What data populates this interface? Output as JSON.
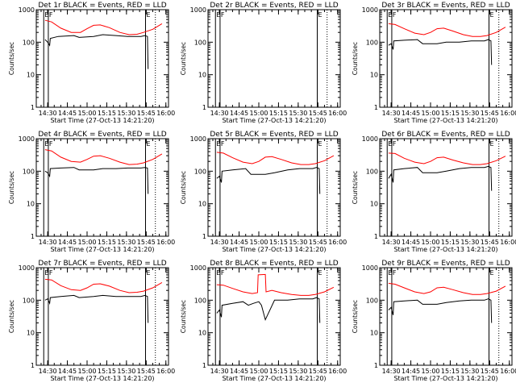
{
  "chart_data": [
    {
      "type": "line",
      "title": "Det 1r BLACK = Events, RED = LLD",
      "detector": "1r",
      "attenuator_labels": [
        "E",
        "F",
        "E"
      ],
      "series": [
        {
          "name": "Events",
          "color": "#000000",
          "x": [
            "14:28",
            "14:30",
            "14:31.5",
            "14:32",
            "14:38",
            "14:50",
            "14:54",
            "15:05",
            "15:12",
            "15:22",
            "15:31",
            "15:39",
            "15:41",
            "15:44",
            "15:46",
            "15:46.5"
          ],
          "y": [
            120,
            100,
            80,
            130,
            150,
            160,
            140,
            150,
            170,
            160,
            150,
            150,
            150,
            160,
            150,
            15
          ]
        },
        {
          "name": "LLD",
          "color": "#ff0000",
          "x": [
            "14:28",
            "14:33",
            "14:40",
            "14:48",
            "14:55",
            "15:00",
            "15:05",
            "15:10",
            "15:17",
            "15:25",
            "15:32",
            "15:38",
            "15:43",
            "15:50",
            "15:57"
          ],
          "y": [
            470,
            420,
            270,
            200,
            200,
            260,
            330,
            340,
            280,
            200,
            170,
            175,
            200,
            250,
            370
          ]
        }
      ]
    },
    {
      "type": "line",
      "title": "Det 2r BLACK = Events, RED = LLD",
      "detector": "2r",
      "attenuator_labels": [
        "E",
        "F",
        "E"
      ],
      "series": []
    },
    {
      "type": "line",
      "title": "Det 3r BLACK = Events, RED = LLD",
      "detector": "3r",
      "attenuator_labels": [
        "E",
        "F",
        "E"
      ],
      "series": [
        {
          "name": "Events",
          "color": "#000000",
          "x": [
            "14:28",
            "14:30",
            "14:31.5",
            "14:32",
            "14:40",
            "14:50",
            "14:54",
            "15:05",
            "15:12",
            "15:22",
            "15:31",
            "15:39",
            "15:41",
            "15:44",
            "15:46",
            "15:46.5"
          ],
          "y": [
            80,
            90,
            60,
            110,
            115,
            120,
            90,
            90,
            100,
            100,
            110,
            110,
            110,
            120,
            110,
            20
          ]
        },
        {
          "name": "LLD",
          "color": "#ff0000",
          "x": [
            "14:28",
            "14:33",
            "14:40",
            "14:48",
            "14:55",
            "15:00",
            "15:05",
            "15:10",
            "15:17",
            "15:25",
            "15:32",
            "15:38",
            "15:43",
            "15:50",
            "15:57"
          ],
          "y": [
            370,
            350,
            260,
            190,
            170,
            200,
            260,
            270,
            220,
            170,
            150,
            150,
            160,
            200,
            290
          ]
        }
      ]
    },
    {
      "type": "line",
      "title": "Det 4r BLACK = Events, RED = LLD",
      "detector": "4r",
      "attenuator_labels": [
        "E",
        "F",
        "E"
      ],
      "series": [
        {
          "name": "Events",
          "color": "#000000",
          "x": [
            "14:28",
            "14:30",
            "14:31.5",
            "14:32",
            "14:40",
            "14:50",
            "14:54",
            "15:05",
            "15:12",
            "15:22",
            "15:31",
            "15:39",
            "15:41",
            "15:44",
            "15:46",
            "15:46.5"
          ],
          "y": [
            100,
            90,
            70,
            120,
            125,
            130,
            110,
            110,
            120,
            120,
            125,
            125,
            125,
            130,
            125,
            20
          ]
        },
        {
          "name": "LLD",
          "color": "#ff0000",
          "x": [
            "14:28",
            "14:33",
            "14:40",
            "14:48",
            "14:55",
            "15:00",
            "15:05",
            "15:10",
            "15:17",
            "15:25",
            "15:32",
            "15:38",
            "15:43",
            "15:50",
            "15:57"
          ],
          "y": [
            460,
            420,
            270,
            200,
            190,
            230,
            290,
            300,
            250,
            190,
            160,
            165,
            180,
            230,
            340
          ]
        }
      ]
    },
    {
      "type": "line",
      "title": "Det 5r BLACK = Events, RED = LLD",
      "detector": "5r",
      "attenuator_labels": [
        "E",
        "F",
        "E"
      ],
      "series": [
        {
          "name": "Events",
          "color": "#000000",
          "x": [
            "14:28",
            "14:30",
            "14:31.5",
            "14:32",
            "14:40",
            "14:50",
            "14:54",
            "15:05",
            "15:12",
            "15:22",
            "15:31",
            "15:39",
            "15:41",
            "15:44",
            "15:46",
            "15:46.5"
          ],
          "y": [
            60,
            70,
            45,
            100,
            110,
            120,
            80,
            80,
            90,
            110,
            120,
            120,
            120,
            130,
            120,
            20
          ]
        },
        {
          "name": "LLD",
          "color": "#ff0000",
          "x": [
            "14:28",
            "14:33",
            "14:40",
            "14:48",
            "14:55",
            "15:00",
            "15:05",
            "15:10",
            "15:17",
            "15:25",
            "15:32",
            "15:38",
            "15:43",
            "15:50",
            "15:57"
          ],
          "y": [
            380,
            360,
            260,
            190,
            170,
            200,
            270,
            280,
            230,
            180,
            160,
            160,
            170,
            210,
            300
          ]
        }
      ]
    },
    {
      "type": "line",
      "title": "Det 6r BLACK = Events, RED = LLD",
      "detector": "6r",
      "attenuator_labels": [
        "E",
        "F",
        "E"
      ],
      "series": [
        {
          "name": "Events",
          "color": "#000000",
          "x": [
            "14:28",
            "14:30",
            "14:31.5",
            "14:32",
            "14:40",
            "14:50",
            "14:54",
            "15:05",
            "15:12",
            "15:22",
            "15:31",
            "15:39",
            "15:41",
            "15:44",
            "15:46",
            "15:46.5"
          ],
          "y": [
            60,
            80,
            45,
            110,
            120,
            130,
            90,
            90,
            100,
            120,
            130,
            130,
            130,
            140,
            130,
            25
          ]
        },
        {
          "name": "LLD",
          "color": "#ff0000",
          "x": [
            "14:28",
            "14:33",
            "14:40",
            "14:48",
            "14:55",
            "15:00",
            "15:05",
            "15:10",
            "15:17",
            "15:25",
            "15:32",
            "15:38",
            "15:43",
            "15:50",
            "15:57"
          ],
          "y": [
            360,
            350,
            250,
            190,
            170,
            200,
            260,
            270,
            220,
            180,
            160,
            160,
            170,
            210,
            290
          ]
        }
      ]
    },
    {
      "type": "line",
      "title": "Det 7r BLACK = Events, RED = LLD",
      "detector": "7r",
      "attenuator_labels": [
        "E",
        "F",
        "E"
      ],
      "series": [
        {
          "name": "Events",
          "color": "#000000",
          "x": [
            "14:28",
            "14:30",
            "14:31.5",
            "14:32",
            "14:40",
            "14:50",
            "14:54",
            "15:05",
            "15:12",
            "15:22",
            "15:31",
            "15:39",
            "15:41",
            "15:44",
            "15:46",
            "15:46.5"
          ],
          "y": [
            100,
            110,
            80,
            120,
            130,
            140,
            120,
            130,
            140,
            130,
            130,
            130,
            130,
            140,
            130,
            20
          ]
        },
        {
          "name": "LLD",
          "color": "#ff0000",
          "x": [
            "14:28",
            "14:33",
            "14:40",
            "14:48",
            "14:55",
            "15:00",
            "15:05",
            "15:10",
            "15:17",
            "15:25",
            "15:32",
            "15:38",
            "15:43",
            "15:50",
            "15:57"
          ],
          "y": [
            440,
            420,
            280,
            210,
            200,
            240,
            310,
            320,
            270,
            200,
            170,
            175,
            190,
            240,
            350
          ]
        }
      ]
    },
    {
      "type": "line",
      "title": "Det 8r BLACK = Events, RED = LLD",
      "detector": "8r",
      "attenuator_labels": [
        "E",
        "F",
        "E"
      ],
      "series": [
        {
          "name": "Events",
          "color": "#000000",
          "x": [
            "14:28",
            "14:30",
            "14:31.5",
            "14:32",
            "14:40",
            "14:48",
            "14:52",
            "14:56",
            "15:00",
            "15:02",
            "15:05",
            "15:12",
            "15:22",
            "15:31",
            "15:39",
            "15:41",
            "15:44",
            "15:46",
            "15:46.5"
          ],
          "y": [
            40,
            50,
            30,
            70,
            80,
            90,
            70,
            80,
            90,
            70,
            25,
            100,
            100,
            110,
            110,
            110,
            120,
            110,
            20
          ]
        },
        {
          "name": "LLD",
          "color": "#ff0000",
          "x": [
            "14:28",
            "14:33",
            "14:40",
            "14:48",
            "14:55",
            "14:59",
            "14:59.5",
            "15:05",
            "15:05.5",
            "15:10",
            "15:17",
            "15:25",
            "15:32",
            "15:38",
            "15:43",
            "15:50",
            "15:57"
          ],
          "y": [
            300,
            290,
            230,
            180,
            160,
            170,
            600,
            620,
            180,
            200,
            170,
            150,
            140,
            140,
            150,
            180,
            250
          ]
        }
      ]
    },
    {
      "type": "line",
      "title": "Det 9r BLACK = Events, RED = LLD",
      "detector": "9r",
      "attenuator_labels": [
        "E",
        "F",
        "E"
      ],
      "series": [
        {
          "name": "Events",
          "color": "#000000",
          "x": [
            "14:28",
            "14:30",
            "14:31.5",
            "14:32",
            "14:40",
            "14:50",
            "14:54",
            "15:05",
            "15:12",
            "15:22",
            "15:31",
            "15:39",
            "15:41",
            "15:44",
            "15:46",
            "15:46.5"
          ],
          "y": [
            50,
            60,
            35,
            90,
            95,
            100,
            75,
            75,
            85,
            95,
            100,
            100,
            100,
            110,
            100,
            20
          ]
        },
        {
          "name": "LLD",
          "color": "#ff0000",
          "x": [
            "14:28",
            "14:33",
            "14:40",
            "14:48",
            "14:55",
            "15:00",
            "15:05",
            "15:10",
            "15:17",
            "15:25",
            "15:32",
            "15:38",
            "15:43",
            "15:50",
            "15:57"
          ],
          "y": [
            330,
            310,
            240,
            180,
            160,
            180,
            240,
            250,
            210,
            170,
            150,
            150,
            160,
            190,
            270
          ]
        }
      ]
    }
  ],
  "shared_axes": {
    "ylabel": "Counts/sec",
    "yscale": "log",
    "ylim": [
      1,
      1000
    ],
    "y_ticks": [
      "1",
      "10",
      "100",
      "1000"
    ],
    "xlabel": "Start Time (27-Oct-13 14:21:20)",
    "xlim": [
      "14:21:20",
      "16:02"
    ],
    "x_ticks": [
      "14:30",
      "14:45",
      "15:00",
      "15:15",
      "15:30",
      "15:45",
      "16:00"
    ],
    "attenuator_times": [
      "14:27",
      "14:30.5",
      "15:44.5",
      "15:52"
    ],
    "attenuator_styles": [
      "solid",
      "solid",
      "solid",
      "dotted"
    ]
  },
  "colors": {
    "events": "#000000",
    "lld": "#ff0000",
    "background": "#ffffff"
  }
}
